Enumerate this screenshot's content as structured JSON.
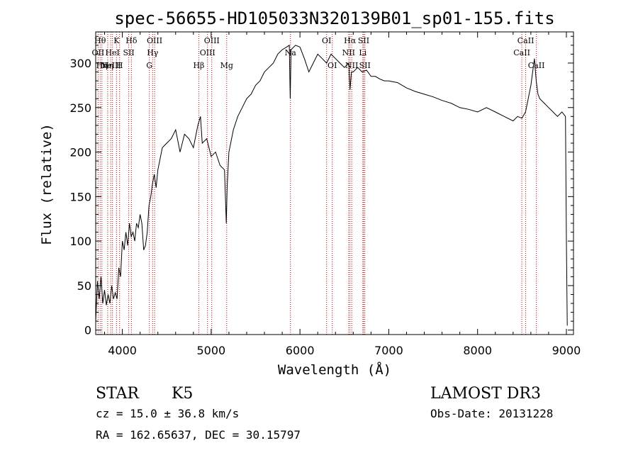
{
  "title": "spec-56655-HD105033N320139B01_sp01-155.fits",
  "chart_data": {
    "type": "line",
    "xlabel": "Wavelength (Å)",
    "ylabel": "Flux (relative)",
    "xlim": [
      3700,
      9080
    ],
    "ylim": [
      -5,
      335
    ],
    "x_ticks": [
      4000,
      5000,
      6000,
      7000,
      8000,
      9000
    ],
    "y_ticks": [
      0,
      50,
      100,
      150,
      200,
      250,
      300
    ],
    "grid": false,
    "series": [
      {
        "x": [
          3700,
          3720,
          3740,
          3760,
          3780,
          3800,
          3820,
          3840,
          3860,
          3880,
          3900,
          3920,
          3940,
          3960,
          3980,
          4000,
          4020,
          4040,
          4060,
          4080,
          4100,
          4120,
          4140,
          4160,
          4180,
          4200,
          4220,
          4240,
          4260,
          4280,
          4300,
          4320,
          4340,
          4360,
          4380,
          4400,
          4450,
          4500,
          4550,
          4600,
          4650,
          4700,
          4750,
          4800,
          4850,
          4880,
          4900,
          4950,
          5000,
          5050,
          5100,
          5150,
          5170,
          5180,
          5200,
          5250,
          5300,
          5350,
          5400,
          5450,
          5500,
          5550,
          5600,
          5650,
          5700,
          5750,
          5800,
          5850,
          5880,
          5890,
          5900,
          5950,
          6000,
          6050,
          6100,
          6150,
          6200,
          6250,
          6300,
          6350,
          6400,
          6450,
          6500,
          6550,
          6563,
          6580,
          6600,
          6650,
          6700,
          6750,
          6800,
          6850,
          6900,
          6950,
          7000,
          7100,
          7200,
          7300,
          7400,
          7500,
          7600,
          7700,
          7800,
          7900,
          8000,
          8100,
          8200,
          8300,
          8400,
          8450,
          8500,
          8540,
          8560,
          8600,
          8620,
          8640,
          8660,
          8680,
          8700,
          8750,
          8800,
          8850,
          8900,
          8950,
          8990,
          9000,
          9010
        ],
        "y": [
          10,
          55,
          35,
          60,
          30,
          45,
          28,
          40,
          30,
          50,
          35,
          42,
          35,
          70,
          60,
          100,
          90,
          110,
          95,
          120,
          105,
          110,
          100,
          120,
          115,
          130,
          120,
          90,
          95,
          110,
          140,
          150,
          165,
          175,
          160,
          180,
          205,
          210,
          215,
          225,
          200,
          220,
          215,
          205,
          230,
          240,
          210,
          215,
          195,
          200,
          185,
          180,
          120,
          160,
          200,
          225,
          240,
          250,
          260,
          265,
          275,
          280,
          290,
          295,
          300,
          310,
          315,
          318,
          320,
          260,
          315,
          320,
          318,
          305,
          290,
          300,
          310,
          305,
          300,
          310,
          305,
          300,
          295,
          300,
          270,
          290,
          290,
          295,
          290,
          292,
          285,
          285,
          282,
          280,
          280,
          278,
          272,
          268,
          265,
          262,
          258,
          255,
          250,
          248,
          245,
          250,
          245,
          240,
          235,
          240,
          238,
          245,
          255,
          275,
          290,
          305,
          280,
          265,
          260,
          255,
          250,
          245,
          240,
          245,
          240,
          100,
          5
        ],
        "color": "#000000"
      }
    ],
    "lines": [
      {
        "wavelength": 3727,
        "label": "OII",
        "row": 2
      },
      {
        "wavelength": 3750,
        "label": "Hθ",
        "row": 1
      },
      {
        "wavelength": 3770,
        "label": "Hη",
        "row": 3
      },
      {
        "wavelength": 3835,
        "label": "Hη",
        "row": 3
      },
      {
        "wavelength": 3869,
        "label": "NeIII",
        "row": 3
      },
      {
        "wavelength": 3889,
        "label": "HeI",
        "row": 2
      },
      {
        "wavelength": 3934,
        "label": "K",
        "row": 1
      },
      {
        "wavelength": 3969,
        "label": "H",
        "row": 3
      },
      {
        "wavelength": 4072,
        "label": "SII",
        "row": 2
      },
      {
        "wavelength": 4102,
        "label": "Hδ",
        "row": 1
      },
      {
        "wavelength": 4304,
        "label": "G",
        "row": 3
      },
      {
        "wavelength": 4341,
        "label": "Hγ",
        "row": 2
      },
      {
        "wavelength": 4363,
        "label": "OIII",
        "row": 1
      },
      {
        "wavelength": 4861,
        "label": "Hβ",
        "row": 3
      },
      {
        "wavelength": 4959,
        "label": "OIII",
        "row": 2
      },
      {
        "wavelength": 5007,
        "label": "OIII",
        "row": 1
      },
      {
        "wavelength": 5175,
        "label": "Mg",
        "row": 3
      },
      {
        "wavelength": 5893,
        "label": "Na",
        "row": 2
      },
      {
        "wavelength": 6300,
        "label": "OI",
        "row": 1
      },
      {
        "wavelength": 6364,
        "label": "OI",
        "row": 3
      },
      {
        "wavelength": 6548,
        "label": "NII",
        "row": 2
      },
      {
        "wavelength": 6563,
        "label": "Hα",
        "row": 1
      },
      {
        "wavelength": 6583,
        "label": "NII",
        "row": 3
      },
      {
        "wavelength": 6708,
        "label": "Li",
        "row": 2
      },
      {
        "wavelength": 6717,
        "label": "SII",
        "row": 1
      },
      {
        "wavelength": 6731,
        "label": "SII",
        "row": 3
      },
      {
        "wavelength": 8498,
        "label": "CaII",
        "row": 2
      },
      {
        "wavelength": 8542,
        "label": "CaII",
        "row": 1
      },
      {
        "wavelength": 8662,
        "label": "CaII",
        "row": 3
      }
    ]
  },
  "info": {
    "class": "STAR",
    "subclass": "K5",
    "survey": "LAMOST DR3",
    "cz": "cz = 15.0 ± 36.8 km/s",
    "obs_date": "Obs-Date: 20131228",
    "radec": "RA = 162.65637, DEC =  30.15797"
  }
}
